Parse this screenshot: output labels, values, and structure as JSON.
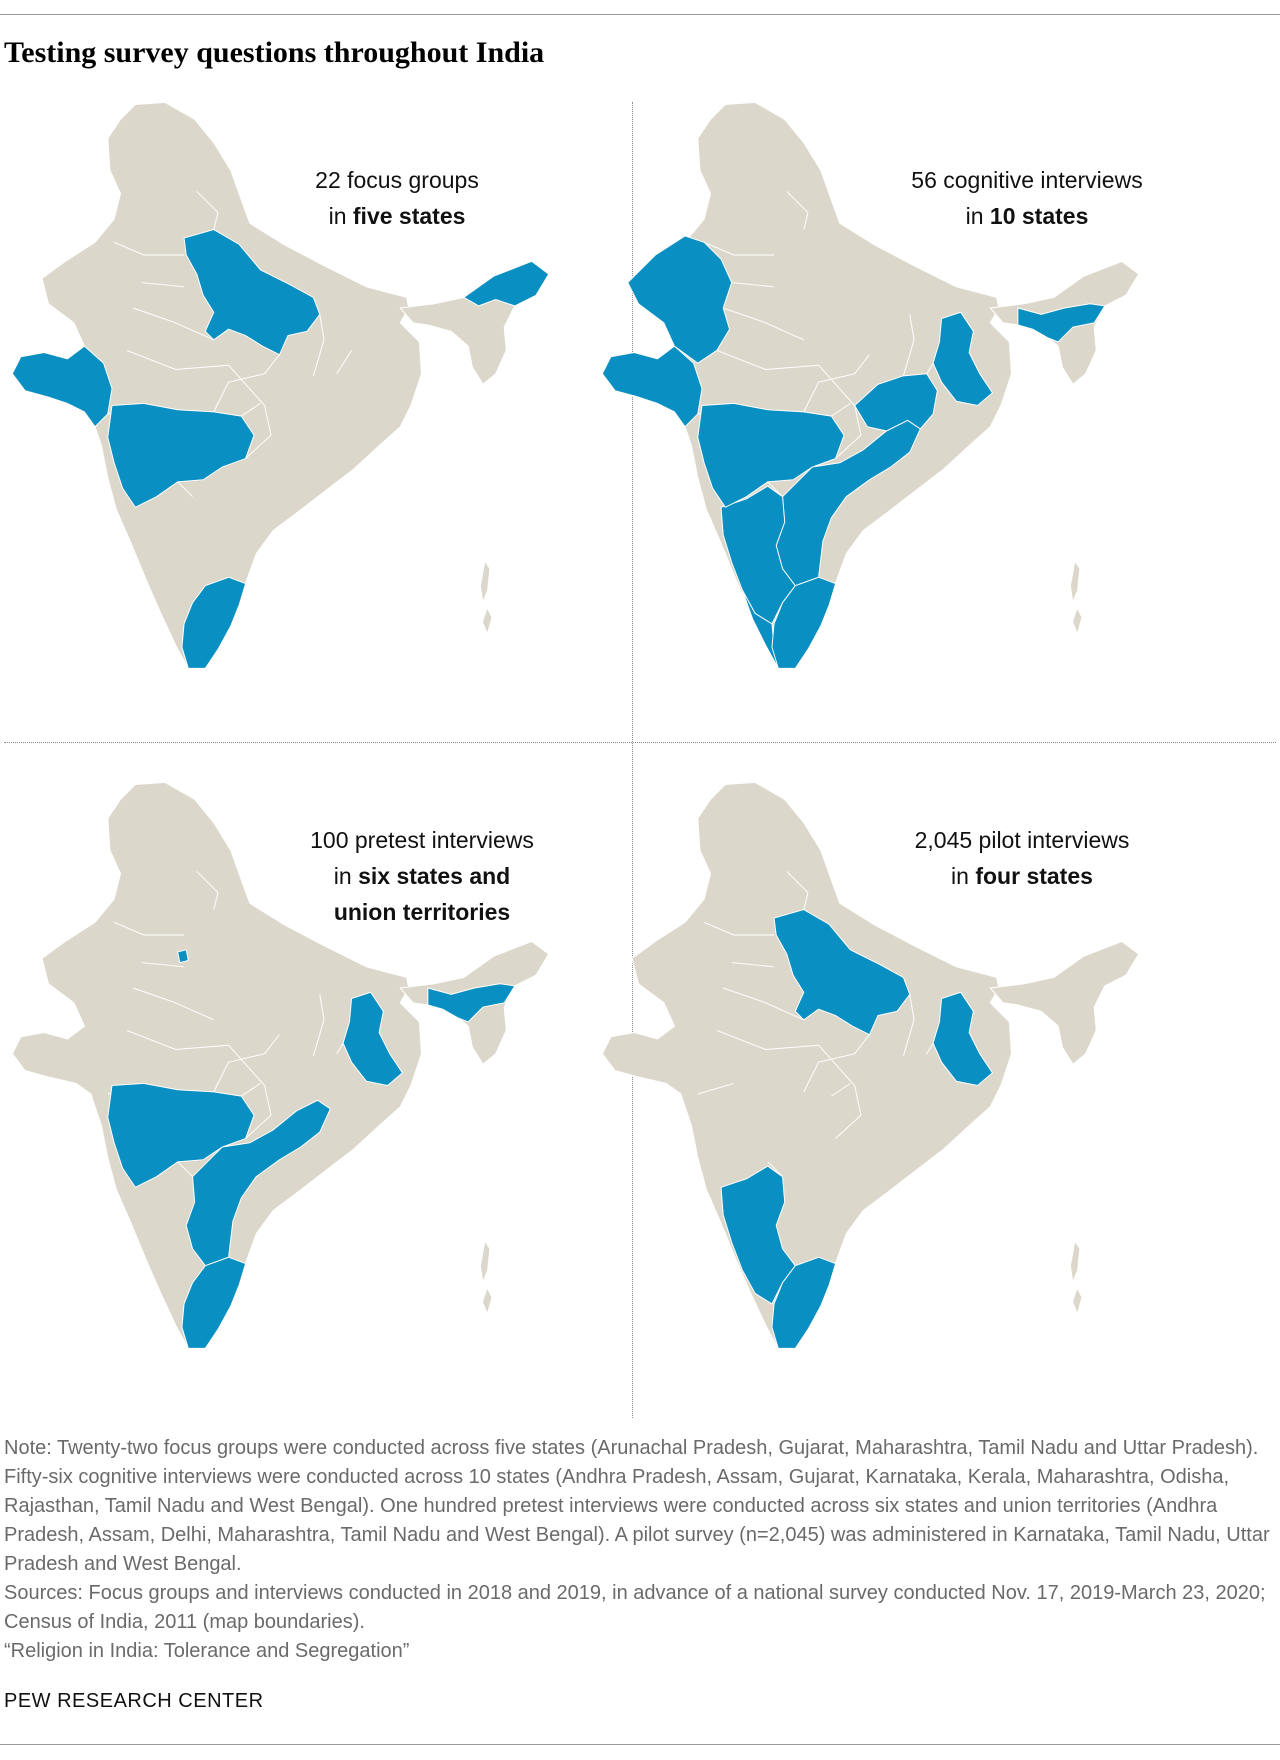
{
  "title": "Testing survey questions throughout India",
  "colors": {
    "highlight": "#0a8fc2",
    "base": "#dbd8cb",
    "border": "#ffffff"
  },
  "panels": [
    {
      "name": "focus-groups",
      "caption_line1": "22 focus groups",
      "caption_line2_prefix": "in ",
      "caption_line2_bold": "five states",
      "caption_line3_bold": "",
      "highlighted_states": [
        "Arunachal Pradesh",
        "Gujarat",
        "Maharashtra",
        "Tamil Nadu",
        "Uttar Pradesh"
      ]
    },
    {
      "name": "cognitive-interviews",
      "caption_line1": "56 cognitive interviews",
      "caption_line2_prefix": "in ",
      "caption_line2_bold": "10 states",
      "caption_line3_bold": "",
      "highlighted_states": [
        "Andhra Pradesh",
        "Assam",
        "Gujarat",
        "Karnataka",
        "Kerala",
        "Maharashtra",
        "Odisha",
        "Rajasthan",
        "Tamil Nadu",
        "West Bengal"
      ]
    },
    {
      "name": "pretest-interviews",
      "caption_line1": "100 pretest interviews",
      "caption_line2_prefix": "in ",
      "caption_line2_bold": "six states and",
      "caption_line3_bold": "union territories",
      "highlighted_states": [
        "Andhra Pradesh",
        "Assam",
        "Delhi",
        "Maharashtra",
        "Tamil Nadu",
        "West Bengal"
      ]
    },
    {
      "name": "pilot-interviews",
      "caption_line1": "2,045 pilot interviews",
      "caption_line2_prefix": "in ",
      "caption_line2_bold": "four states",
      "caption_line3_bold": "",
      "highlighted_states": [
        "Karnataka",
        "Tamil Nadu",
        "Uttar Pradesh",
        "West Bengal"
      ]
    }
  ],
  "notes": {
    "note": "Note: Twenty-two focus groups were conducted across five states (Arunachal Pradesh, Gujarat, Maharashtra, Tamil Nadu and Uttar Pradesh). Fifty-six cognitive interviews were conducted across 10 states (Andhra Pradesh, Assam, Gujarat, Karnataka, Kerala, Maharashtra, Odisha, Rajasthan, Tamil Nadu and West Bengal). One hundred pretest interviews were conducted across six states and union territories (Andhra Pradesh, Assam, Delhi, Maharashtra, Tamil Nadu and West Bengal). A pilot survey (n=2,045) was administered in Karnataka, Tamil Nadu, Uttar Pradesh and West Bengal.",
    "sources": "Sources: Focus groups and interviews conducted in 2018 and 2019, in advance of a national survey conducted Nov. 17, 2019-March 23, 2020; Census of India, 2011 (map boundaries).",
    "report": "“Religion in India: Tolerance and Segregation”"
  },
  "org": "PEW RESEARCH CENTER"
}
